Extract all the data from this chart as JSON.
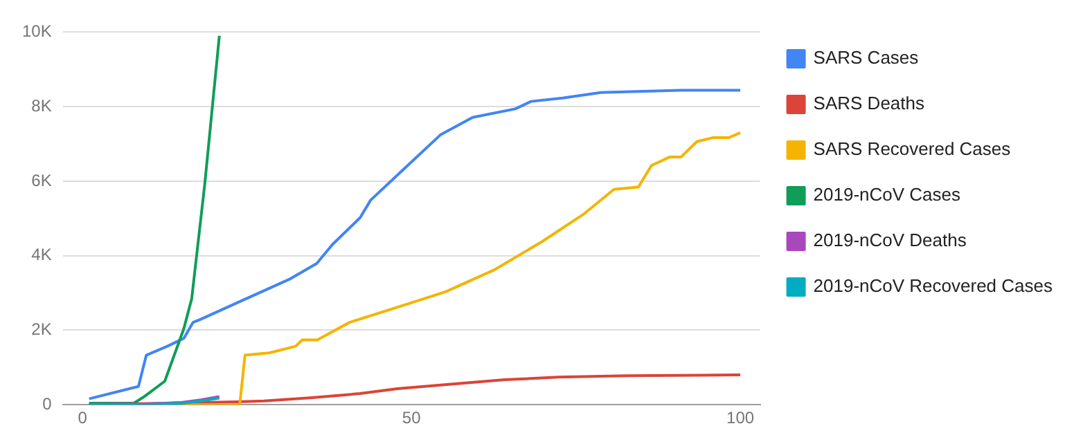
{
  "chart_data": {
    "type": "line",
    "xlim": [
      -3,
      103
    ],
    "xticks": [
      0,
      50,
      100
    ],
    "ylim": [
      0,
      10000
    ],
    "yticks": [
      0,
      {
        "value": 2000,
        "label": "2K"
      },
      {
        "value": 4000,
        "label": "4K"
      },
      {
        "value": 6000,
        "label": "6K"
      },
      {
        "value": 8000,
        "label": "8K"
      },
      {
        "value": 10000,
        "label": "10K"
      }
    ],
    "grid": "y",
    "legend": "right",
    "series": [
      {
        "name": "SARS Cases",
        "color": "#4285f4",
        "x": [
          1,
          8.5,
          9.7,
          12.9,
          15.4,
          16.8,
          17.8,
          24.3,
          31.6,
          35.6,
          38,
          42.2,
          43.8,
          48.7,
          54.4,
          59.3,
          65.8,
          68.2,
          73,
          78.8,
          91,
          100
        ],
        "values": [
          160,
          490,
          1330,
          1570,
          1780,
          2210,
          2280,
          2800,
          3380,
          3790,
          4300,
          5020,
          5490,
          6300,
          7240,
          7710,
          7940,
          8140,
          8230,
          8380,
          8440,
          8440
        ]
      },
      {
        "name": "SARS Deaths",
        "color": "#db4437",
        "x": [
          1,
          10,
          23.6,
          27.6,
          34.9,
          42.2,
          47.9,
          56,
          64.2,
          72.3,
          82.9,
          100
        ],
        "values": [
          10,
          30,
          80,
          100,
          190,
          300,
          430,
          550,
          670,
          740,
          780,
          800
        ]
      },
      {
        "name": "SARS Recovered Cases",
        "color": "#f4b400",
        "x": [
          1,
          23.9,
          24.7,
          28.4,
          32.4,
          33.4,
          35.7,
          40.6,
          47.9,
          55.2,
          62.5,
          69.8,
          76.3,
          80.8,
          84.5,
          86.5,
          89.3,
          91,
          93.4,
          95.9,
          98.3,
          100
        ],
        "values": [
          0,
          0,
          1330,
          1390,
          1570,
          1740,
          1740,
          2210,
          2620,
          3030,
          3610,
          4370,
          5130,
          5780,
          5840,
          6420,
          6650,
          6650,
          7060,
          7170,
          7170,
          7300
        ]
      },
      {
        "name": "2019-nCoV Cases",
        "color": "#0f9d58",
        "x": [
          1,
          7.8,
          9.4,
          12.5,
          15.4,
          16.6,
          18.6,
          20.8
        ],
        "values": [
          40,
          40,
          220,
          630,
          2040,
          2850,
          5950,
          9900
        ]
      },
      {
        "name": "2019-nCoV Deaths",
        "color": "#ab47bc",
        "x": [
          1,
          10,
          15,
          18,
          20.8
        ],
        "values": [
          10,
          20,
          60,
          130,
          220
        ]
      },
      {
        "name": "2019-nCoV Recovered Cases",
        "color": "#00acc1",
        "x": [
          1,
          10,
          15,
          18,
          20.8
        ],
        "values": [
          0,
          10,
          40,
          100,
          180
        ]
      }
    ]
  }
}
